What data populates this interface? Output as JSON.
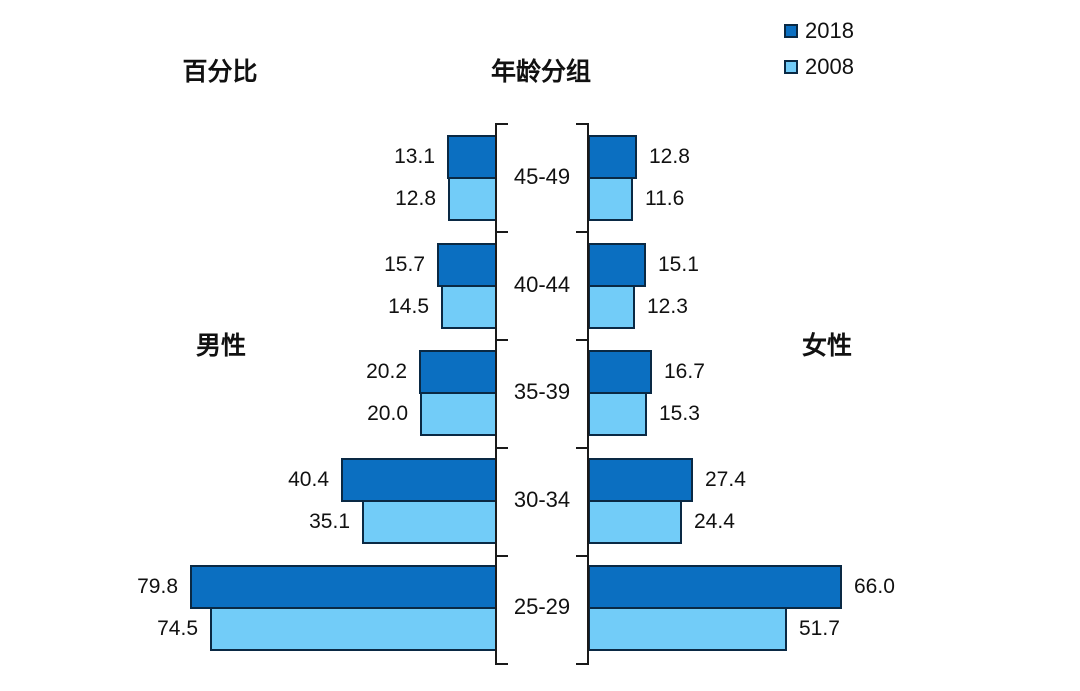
{
  "header": {
    "axis_label_left": "百分比",
    "axis_label_center": "年龄分组"
  },
  "side_labels": {
    "male": "男性",
    "female": "女性"
  },
  "legend": {
    "position": "top-right",
    "items": [
      {
        "label": "2018",
        "color": "#0b6fc1"
      },
      {
        "label": "2008",
        "color": "#72ccf8"
      }
    ]
  },
  "colors": {
    "bar_2018": "#0b6fc1",
    "bar_2008": "#72ccf8",
    "bar_border": "#0a2944",
    "axis": "#1a1a1a",
    "text": "#111111",
    "background": "#ffffff"
  },
  "chart_data": {
    "type": "bar",
    "subtype": "population_pyramid_back_to_back",
    "title": "",
    "unit": "percent",
    "axis_title_values": "百分比",
    "axis_title_categories": "年龄分组",
    "categories": [
      "45-49",
      "40-44",
      "35-39",
      "30-34",
      "25-29"
    ],
    "series": [
      {
        "name": "男性 2018",
        "side": "male",
        "year": "2018",
        "values": [
          13.1,
          15.7,
          20.2,
          40.4,
          79.8
        ]
      },
      {
        "name": "男性 2008",
        "side": "male",
        "year": "2008",
        "values": [
          12.8,
          14.5,
          20.0,
          35.1,
          74.5
        ]
      },
      {
        "name": "女性 2018",
        "side": "female",
        "year": "2018",
        "values": [
          12.8,
          15.1,
          16.7,
          27.4,
          66.0
        ]
      },
      {
        "name": "女性 2008",
        "side": "female",
        "year": "2008",
        "values": [
          11.6,
          12.3,
          15.3,
          24.4,
          51.7
        ]
      }
    ],
    "value_label_decimals": 1,
    "legend_entries": [
      "2018",
      "2008"
    ],
    "legend_position": "top-right",
    "value_range_per_side": [
      0,
      80
    ],
    "grid": false
  }
}
